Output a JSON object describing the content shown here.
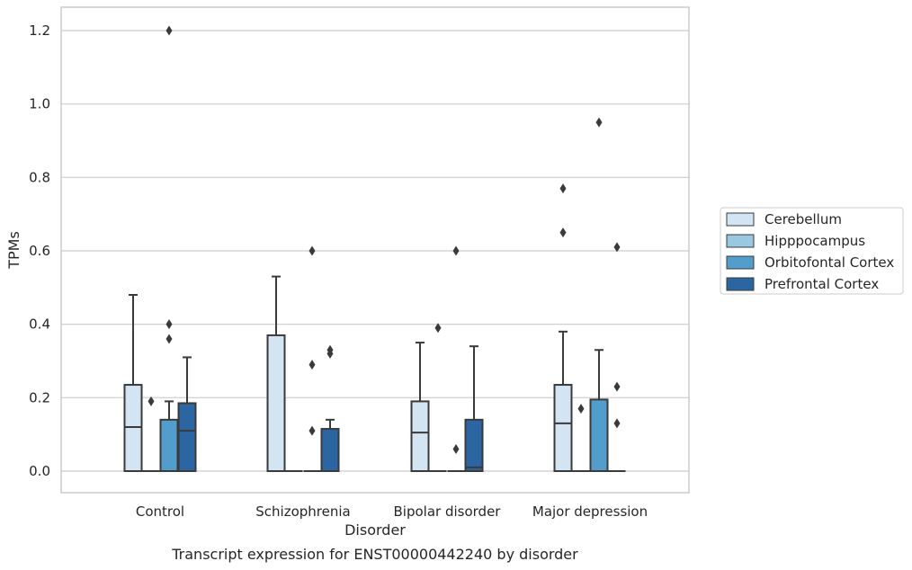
{
  "chart_data": {
    "type": "boxplot",
    "title": "",
    "caption": "Transcript expression for ENST00000442240 by disorder",
    "xlabel": "Disorder",
    "ylabel": "TPMs",
    "ylim": [
      -0.06,
      1.26
    ],
    "yticks": [
      "0.0",
      "0.2",
      "0.4",
      "0.6",
      "0.8",
      "1.0",
      "1.2"
    ],
    "grid": true,
    "legend_position": "right",
    "categories": [
      "Control",
      "Schizophrenia",
      "Bipolar disorder",
      "Major depression"
    ],
    "series": [
      {
        "name": "Cerebellum",
        "color": "#d3e4f3",
        "boxes": [
          {
            "q1": 0,
            "median": 0.12,
            "q3": 0.235,
            "whisker_low": 0,
            "whisker_high": 0.48,
            "outliers": []
          },
          {
            "q1": 0,
            "median": 0,
            "q3": 0.37,
            "whisker_low": 0,
            "whisker_high": 0.53,
            "outliers": []
          },
          {
            "q1": 0,
            "median": 0.105,
            "q3": 0.19,
            "whisker_low": 0,
            "whisker_high": 0.35,
            "outliers": []
          },
          {
            "q1": 0,
            "median": 0.13,
            "q3": 0.235,
            "whisker_low": 0,
            "whisker_high": 0.38,
            "outliers": [
              0.65,
              0.77
            ]
          }
        ]
      },
      {
        "name": "Hipppocampus",
        "color": "#9ac8e0",
        "boxes": [
          {
            "q1": 0,
            "median": 0,
            "q3": 0,
            "whisker_low": 0,
            "whisker_high": 0,
            "outliers": [
              0.19
            ]
          },
          {
            "q1": 0,
            "median": 0,
            "q3": 0,
            "whisker_low": 0,
            "whisker_high": 0,
            "outliers": []
          },
          {
            "q1": 0,
            "median": 0,
            "q3": 0,
            "whisker_low": 0,
            "whisker_high": 0,
            "outliers": [
              0.39
            ]
          },
          {
            "q1": 0,
            "median": 0,
            "q3": 0,
            "whisker_low": 0,
            "whisker_high": 0,
            "outliers": [
              0.17
            ]
          }
        ]
      },
      {
        "name": "Orbitofontal Cortex",
        "color": "#529dcb",
        "boxes": [
          {
            "q1": 0,
            "median": 0,
            "q3": 0.14,
            "whisker_low": 0,
            "whisker_high": 0.19,
            "outliers": [
              0.36,
              0.4,
              1.2
            ]
          },
          {
            "q1": 0,
            "median": 0,
            "q3": 0,
            "whisker_low": 0,
            "whisker_high": 0,
            "outliers": [
              0.11,
              0.29,
              0.6
            ]
          },
          {
            "q1": 0,
            "median": 0,
            "q3": 0,
            "whisker_low": 0,
            "whisker_high": 0,
            "outliers": [
              0.06,
              0.6
            ]
          },
          {
            "q1": 0,
            "median": 0,
            "q3": 0.195,
            "whisker_low": 0,
            "whisker_high": 0.33,
            "outliers": [
              0.95
            ]
          }
        ]
      },
      {
        "name": "Prefrontal Cortex",
        "color": "#2b66a2",
        "boxes": [
          {
            "q1": 0,
            "median": 0.11,
            "q3": 0.185,
            "whisker_low": 0,
            "whisker_high": 0.31,
            "outliers": []
          },
          {
            "q1": 0,
            "median": 0,
            "q3": 0.115,
            "whisker_low": 0,
            "whisker_high": 0.14,
            "outliers": [
              0.32,
              0.33
            ]
          },
          {
            "q1": 0,
            "median": 0.01,
            "q3": 0.14,
            "whisker_low": 0,
            "whisker_high": 0.34,
            "outliers": []
          },
          {
            "q1": 0,
            "median": 0,
            "q3": 0,
            "whisker_low": 0,
            "whisker_high": 0,
            "outliers": [
              0.13,
              0.23,
              0.61
            ]
          }
        ]
      }
    ],
    "colors": {
      "grid": "#cccccc",
      "frame": "#cccccc",
      "line": "#3a3a3a"
    }
  }
}
